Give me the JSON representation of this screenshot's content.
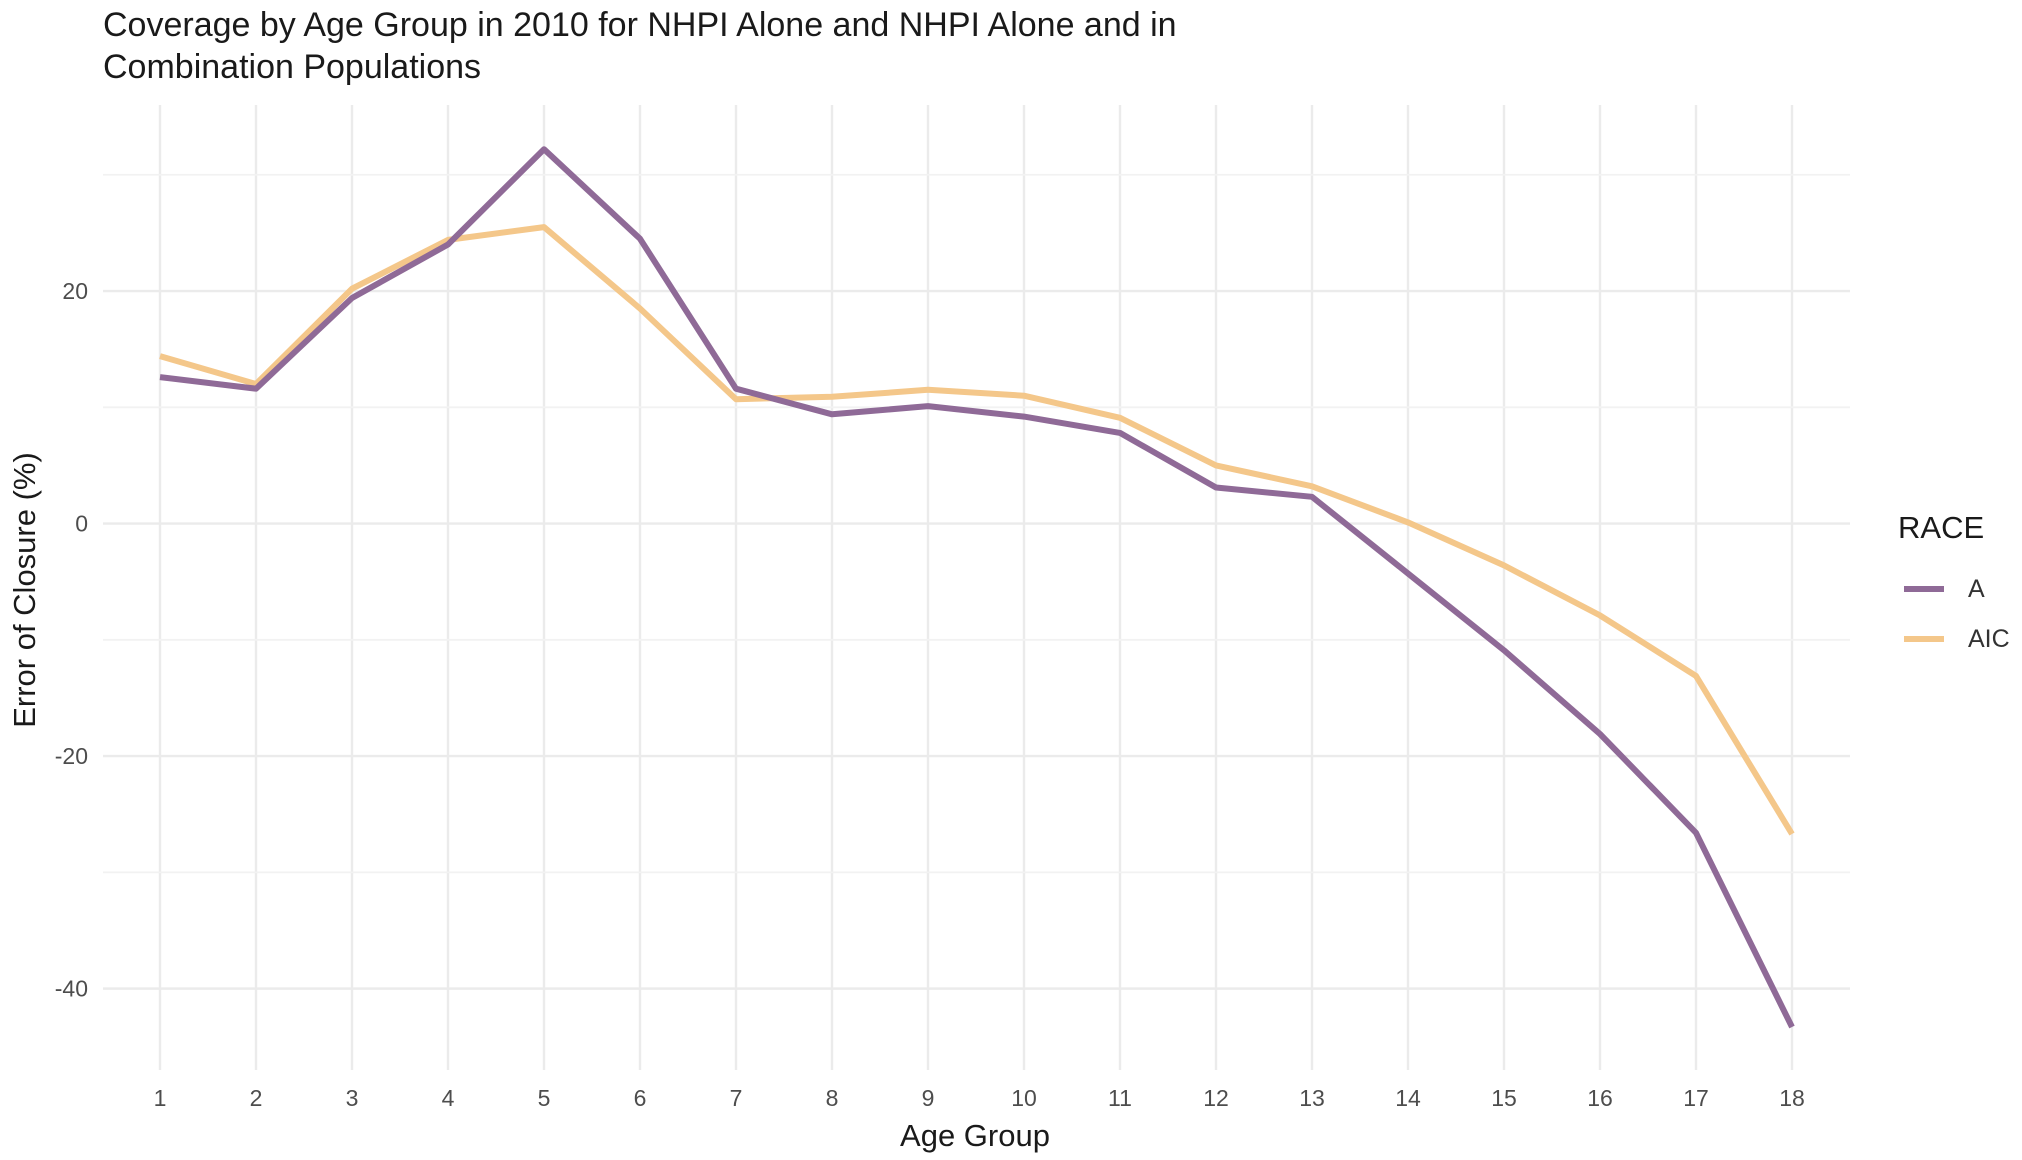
{
  "chart_data": {
    "type": "line",
    "title_lines": [
      "Coverage by Age Group in 2010 for NHPI Alone and NHPI Alone and in",
      "Combination Populations"
    ],
    "xlabel": "Age Group",
    "ylabel": "Error of Closure (%)",
    "categories": [
      "1",
      "2",
      "3",
      "4",
      "5",
      "6",
      "7",
      "8",
      "9",
      "10",
      "11",
      "12",
      "13",
      "14",
      "15",
      "16",
      "17",
      "18"
    ],
    "ylim": [
      -47,
      36
    ],
    "yticks": [
      20,
      0,
      -20,
      -40
    ],
    "ytick_labels": [
      "20",
      "0",
      "-20",
      "-40"
    ],
    "grid": true,
    "legend": {
      "title": "RACE",
      "position": "right"
    },
    "series": [
      {
        "name": "A",
        "color": "#8F6A97",
        "values": [
          12.6,
          11.6,
          19.4,
          24.0,
          32.2,
          24.5,
          11.6,
          9.4,
          10.1,
          9.2,
          7.8,
          3.1,
          2.3,
          -4.3,
          -10.9,
          -18.1,
          -26.6,
          -43.3
        ]
      },
      {
        "name": "AIC",
        "color": "#F4C78A",
        "values": [
          14.4,
          12.0,
          20.2,
          24.4,
          25.5,
          18.5,
          10.7,
          10.9,
          11.5,
          11.0,
          9.1,
          5.0,
          3.2,
          0.1,
          -3.6,
          -7.9,
          -13.1,
          -26.7
        ]
      }
    ]
  }
}
